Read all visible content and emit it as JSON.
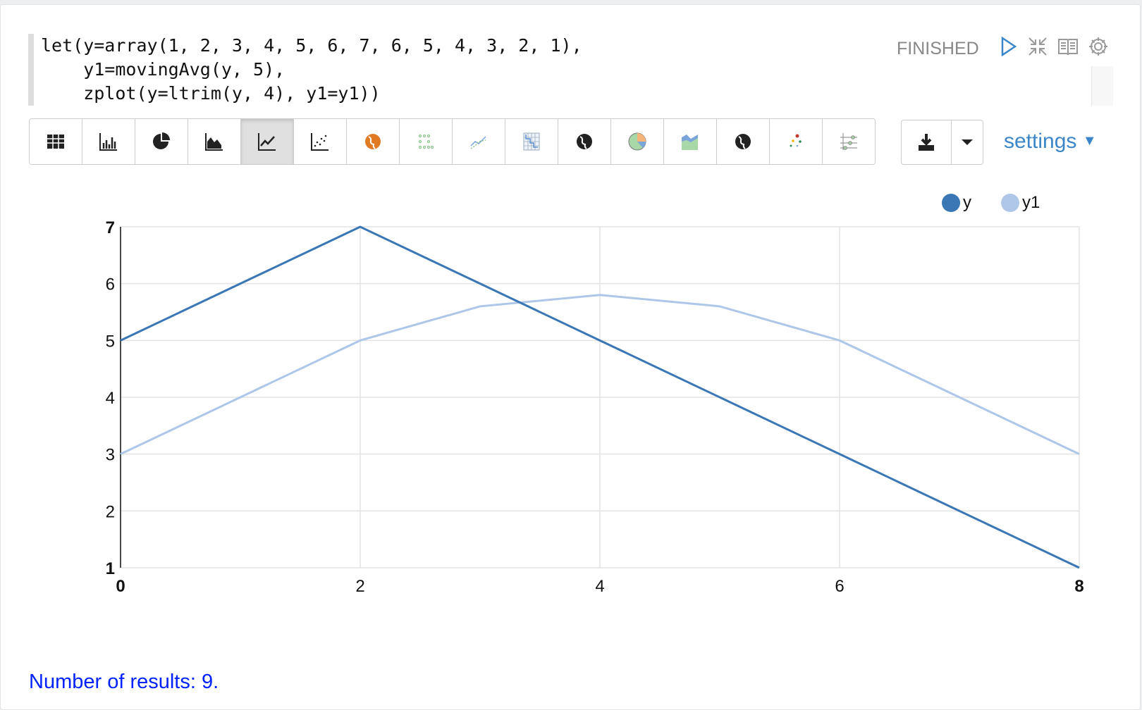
{
  "paragraph": {
    "code_lines": [
      "let(y=array(1, 2, 3, 4, 5, 6, 7, 6, 5, 4, 3, 2, 1),",
      "    y1=movingAvg(y, 5),",
      "    zplot(y=ltrim(y, 4), y1=y1))"
    ],
    "status": "FINISHED",
    "header_icons": [
      "play-icon",
      "compress-icon",
      "book-icon",
      "gear-icon"
    ]
  },
  "toolbar": {
    "buttons": [
      "table",
      "bar-chart",
      "pie-chart",
      "area-chart",
      "line-chart",
      "scatter-chart",
      "globe-orange",
      "dot-grid",
      "multi-line",
      "heatmap",
      "globe-dark",
      "pie-color",
      "stacked-area",
      "globe-dark-2",
      "bubble",
      "parallel"
    ],
    "active": "line-chart",
    "download_icon": "download-icon",
    "settings_label": "settings"
  },
  "chart_data": {
    "type": "line",
    "x": [
      0,
      1,
      2,
      3,
      4,
      5,
      6,
      7,
      8
    ],
    "series": [
      {
        "name": "y",
        "color": "#3a77b4",
        "values": [
          5,
          6,
          7,
          6,
          5,
          4,
          3,
          2,
          1
        ]
      },
      {
        "name": "y1",
        "color": "#aec7e8",
        "values": [
          3,
          4,
          5,
          5.6,
          5.8,
          5.6,
          5,
          4,
          3
        ]
      }
    ],
    "xticks": [
      "0",
      "2",
      "4",
      "6",
      "8"
    ],
    "yticks": [
      "1",
      "2",
      "3",
      "4",
      "5",
      "6",
      "7"
    ],
    "xlim": [
      0,
      8
    ],
    "ylim": [
      1,
      7
    ],
    "grid": true,
    "legend": "top-right"
  },
  "footer": {
    "results_text": "Number of results: 9."
  }
}
